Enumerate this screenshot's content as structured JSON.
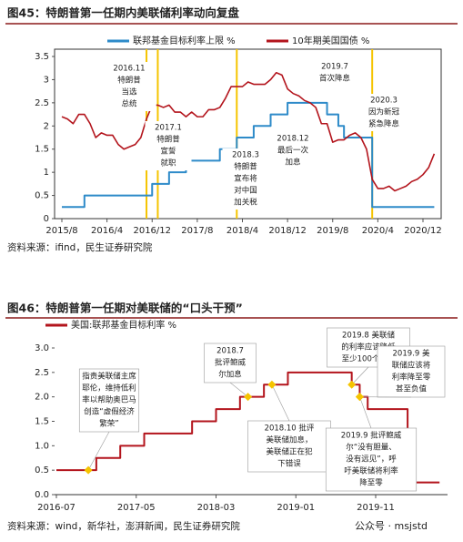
{
  "chart_data": [
    {
      "type": "line",
      "title": "图45：特朗普第一任期内美联储利率动向复盘",
      "source": "资料来源：ifind，民生证券研究院",
      "x": [
        "2015/8",
        "2015/9",
        "2015/10",
        "2015/11",
        "2015/12",
        "2016/1",
        "2016/2",
        "2016/3",
        "2016/4",
        "2016/5",
        "2016/6",
        "2016/7",
        "2016/8",
        "2016/9",
        "2016/10",
        "2016/11",
        "2016/12",
        "2017/1",
        "2017/2",
        "2017/3",
        "2017/4",
        "2017/5",
        "2017/6",
        "2017/7",
        "2017/8",
        "2017/9",
        "2017/10",
        "2017/11",
        "2017/12",
        "2018/1",
        "2018/2",
        "2018/3",
        "2018/4",
        "2018/5",
        "2018/6",
        "2018/7",
        "2018/8",
        "2018/9",
        "2018/10",
        "2018/11",
        "2018/12",
        "2019/1",
        "2019/2",
        "2019/3",
        "2019/4",
        "2019/5",
        "2019/6",
        "2019/7",
        "2019/8",
        "2019/9",
        "2019/10",
        "2019/11",
        "2019/12",
        "2020/1",
        "2020/2",
        "2020/3",
        "2020/4",
        "2020/5",
        "2020/6",
        "2020/7",
        "2020/8",
        "2020/9",
        "2020/10",
        "2020/11",
        "2020/12",
        "2021/1",
        "2021/2"
      ],
      "series": [
        {
          "name": "联邦基金目标利率上限 %",
          "color": "#2e8bc9",
          "step": true,
          "values": [
            0.25,
            0.25,
            0.25,
            0.25,
            0.5,
            0.5,
            0.5,
            0.5,
            0.5,
            0.5,
            0.5,
            0.5,
            0.5,
            0.5,
            0.5,
            0.5,
            0.75,
            0.75,
            0.75,
            1,
            1,
            1,
            1.25,
            1.25,
            1.25,
            1.25,
            1.25,
            1.25,
            1.5,
            1.5,
            1.5,
            1.75,
            1.75,
            1.75,
            2,
            2,
            2,
            2.25,
            2.25,
            2.25,
            2.5,
            2.5,
            2.5,
            2.5,
            2.5,
            2.5,
            2.5,
            2.25,
            2.25,
            2,
            1.75,
            1.75,
            1.75,
            1.75,
            1.75,
            0.25,
            0.25,
            0.25,
            0.25,
            0.25,
            0.25,
            0.25,
            0.25,
            0.25,
            0.25,
            0.25,
            0.25
          ]
        },
        {
          "name": "10年期美国国债 %",
          "color": "#b3141c",
          "step": false,
          "values": [
            2.2,
            2.15,
            2.05,
            2.25,
            2.25,
            2.05,
            1.75,
            1.85,
            1.8,
            1.8,
            1.6,
            1.5,
            1.55,
            1.6,
            1.75,
            2.15,
            2.45,
            2.45,
            2.4,
            2.45,
            2.3,
            2.3,
            2.2,
            2.3,
            2.2,
            2.2,
            2.35,
            2.35,
            2.4,
            2.6,
            2.85,
            2.85,
            2.85,
            2.95,
            2.9,
            2.9,
            2.9,
            3.0,
            3.15,
            3.1,
            2.8,
            2.7,
            2.65,
            2.55,
            2.5,
            2.4,
            2.05,
            2.05,
            1.65,
            1.7,
            1.7,
            1.8,
            1.85,
            1.75,
            1.5,
            0.85,
            0.65,
            0.65,
            0.7,
            0.6,
            0.65,
            0.7,
            0.8,
            0.85,
            0.95,
            1.1,
            1.4
          ]
        }
      ],
      "ylim": [
        0,
        3.5
      ],
      "yticks": [
        0,
        0.5,
        1,
        1.5,
        2,
        2.5,
        3,
        3.5
      ],
      "xticks": [
        "2015/8",
        "2016/4",
        "2016/12",
        "2017/8",
        "2018/4",
        "2018/12",
        "2019/8",
        "2020/4",
        "2020/12"
      ],
      "vlines": [
        "2016/11",
        "2017/1",
        "2018/3",
        "2020/3"
      ],
      "vline_color": "#f5c400",
      "annotations": [
        {
          "lines": [
            "2016.11",
            "特朗普",
            "当选",
            "总统"
          ],
          "color": "#222222"
        },
        {
          "lines": [
            "2017.1",
            "特朗普",
            "宣誓",
            "就职"
          ],
          "color": "#222222"
        },
        {
          "lines": [
            "2018.3",
            "特朗普",
            "宣布将",
            "对中国",
            "加关税"
          ],
          "color": "#222222"
        },
        {
          "lines": [
            "2018.12",
            "最后一次",
            "加息"
          ],
          "color": "#2e8bc9"
        },
        {
          "lines": [
            "2019.7",
            "首次降息"
          ],
          "color": "#2e8bc9"
        },
        {
          "lines": [
            "2020.3",
            "因为新冠",
            "紧急降息"
          ],
          "color": "#222222"
        }
      ]
    },
    {
      "type": "line",
      "title": "图46：特朗普第一任期对美联储的“口头干预”",
      "source": "资料来源：wind，新华社，澎湃新闻，民生证券研究院",
      "x": [
        "2016-07",
        "2016-08",
        "2016-09",
        "2016-10",
        "2016-11",
        "2016-12",
        "2017-01",
        "2017-02",
        "2017-03",
        "2017-04",
        "2017-05",
        "2017-06",
        "2017-07",
        "2017-08",
        "2017-09",
        "2017-10",
        "2017-11",
        "2017-12",
        "2018-01",
        "2018-02",
        "2018-03",
        "2018-04",
        "2018-05",
        "2018-06",
        "2018-07",
        "2018-08",
        "2018-09",
        "2018-10",
        "2018-11",
        "2018-12",
        "2019-01",
        "2019-02",
        "2019-03",
        "2019-04",
        "2019-05",
        "2019-06",
        "2019-07",
        "2019-08",
        "2019-09",
        "2019-10",
        "2019-11",
        "2019-12",
        "2020-01",
        "2020-02",
        "2020-03",
        "2020-04",
        "2020-05",
        "2020-06",
        "2020-07"
      ],
      "series": [
        {
          "name": "美国:联邦基金目标利率 %",
          "color": "#b3141c",
          "step": true,
          "values": [
            0.5,
            0.5,
            0.5,
            0.5,
            0.5,
            0.75,
            0.75,
            0.75,
            1,
            1,
            1,
            1.25,
            1.25,
            1.25,
            1.25,
            1.25,
            1.25,
            1.5,
            1.5,
            1.5,
            1.75,
            1.75,
            1.75,
            2,
            2,
            2,
            2.25,
            2.25,
            2.25,
            2.5,
            2.5,
            2.5,
            2.5,
            2.5,
            2.5,
            2.5,
            2.5,
            2.25,
            2,
            1.75,
            1.75,
            1.75,
            1.75,
            1.75,
            0.25,
            0.25,
            0.25,
            0.25,
            0.25
          ]
        }
      ],
      "ylim": [
        0,
        3
      ],
      "yticks": [
        {
          "value": 0,
          "label": "0.0"
        },
        0.5,
        {
          "value": 1,
          "label": "1.0"
        },
        1.5,
        {
          "value": 2,
          "label": "2.0"
        },
        2.5,
        {
          "value": 3,
          "label": "3.0"
        }
      ],
      "xticks": [
        "2016-07",
        "2017-05",
        "2018-03",
        "2019-01",
        "2019-11"
      ],
      "marker_color": "#f5c400",
      "events": [
        {
          "x": "2016-11",
          "value": 0.5,
          "lines": [
            "指责美联储主席",
            "耶伦，维持低利",
            "率以帮助奥巴马",
            "创造“虚假经济",
            "繁荣”"
          ]
        },
        {
          "x": "2018-07",
          "value": 2,
          "lines": [
            "2018.7",
            "批评鲍威",
            "尔加息"
          ]
        },
        {
          "x": "2018-10",
          "value": 2.25,
          "lines": [
            "2018.10 批评",
            "美联储加息，",
            "美联储正在犯",
            "下错误"
          ]
        },
        {
          "x": "2019-08",
          "value": 2.25,
          "lines": [
            "2019.8 美联储",
            "的利率应该降低",
            "至少100个基点"
          ]
        },
        {
          "x": "2019-09",
          "value": 2,
          "lines": [
            "2019.9 美",
            "联储应该将",
            "利率降至零",
            "甚至负值"
          ]
        },
        {
          "x": "2019-09",
          "value": 2,
          "lines": [
            "2019.9 批评鲍威",
            "尔“没有胆量、",
            "没有远见”，呼",
            "吁美联储将利率",
            "降至零"
          ]
        }
      ]
    }
  ],
  "watermark": "公众号 · msjstd"
}
